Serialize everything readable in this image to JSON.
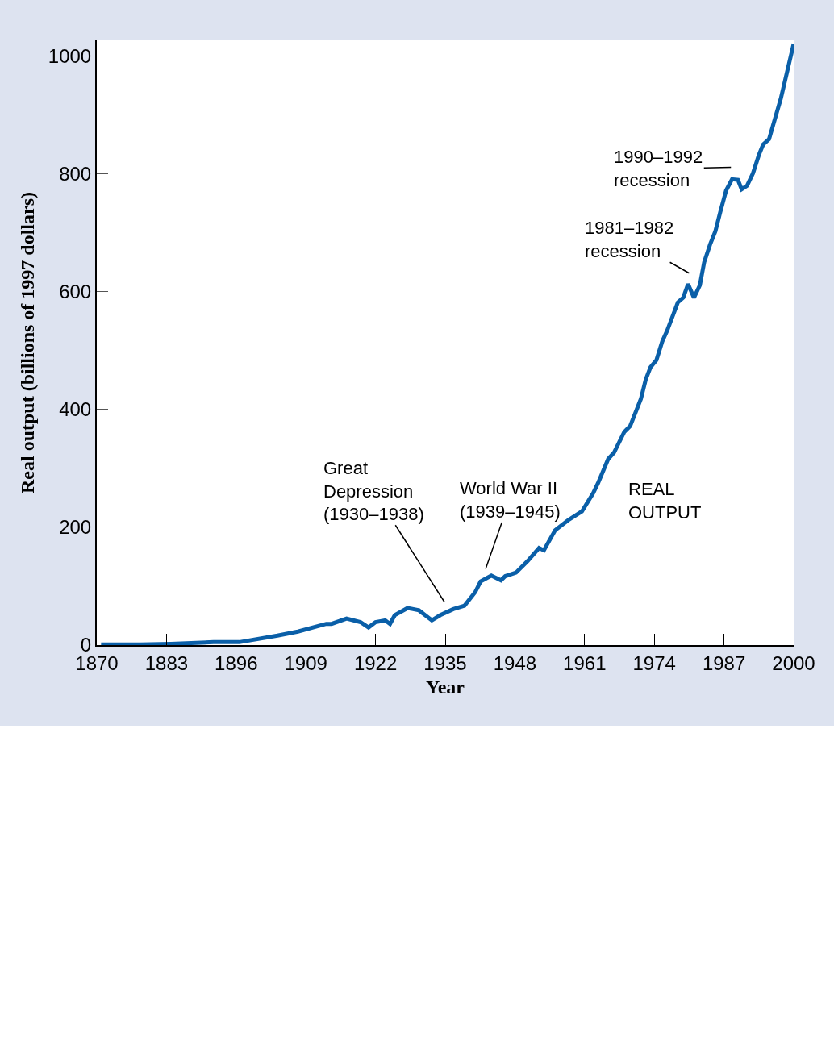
{
  "chart_data": {
    "type": "line",
    "xlabel": "Year",
    "ylabel": "Real output (billions of 1997 dollars)",
    "x": [
      1870.8,
      1878.1,
      1883.8,
      1891.8,
      1896.6,
      1903.7,
      1907.5,
      1912.8,
      1913.8,
      1916.6,
      1919.2,
      1920.7,
      1922.0,
      1923.8,
      1924.7,
      1925.6,
      1928.0,
      1930.1,
      1932.5,
      1934.1,
      1936.5,
      1938.6,
      1940.6,
      1941.6,
      1943.6,
      1945.4,
      1946.2,
      1948.2,
      1950.4,
      1952.5,
      1953.4,
      1955.5,
      1957.9,
      1960.5,
      1962.6,
      1963.5,
      1965.4,
      1966.5,
      1968.4,
      1969.5,
      1971.5,
      1972.4,
      1973.3,
      1974.4,
      1975.5,
      1976.4,
      1978.4,
      1979.4,
      1980.3,
      1981.4,
      1982.5,
      1983.3,
      1984.4,
      1985.4,
      1986.3,
      1987.4,
      1988.5,
      1989.6,
      1990.3,
      1991.3,
      1992.4,
      1993.5,
      1994.3,
      1995.4,
      1997.6,
      2000.0
    ],
    "series": [
      {
        "color": "#0a5fa8",
        "values": [
          1,
          1,
          2,
          5,
          5,
          16,
          23,
          36,
          36,
          45,
          39,
          30,
          39,
          42,
          36,
          51,
          63,
          59,
          42,
          51,
          61,
          67,
          90,
          108,
          118,
          110,
          117,
          123,
          143,
          165,
          161,
          195,
          212,
          227,
          258,
          275,
          316,
          327,
          362,
          372,
          418,
          451,
          472,
          484,
          516,
          534,
          582,
          590,
          613,
          590,
          611,
          650,
          680,
          703,
          735,
          772,
          791,
          790,
          774,
          780,
          801,
          832,
          850,
          859,
          928,
          1021
        ]
      }
    ],
    "xlim": [
      1870,
      2000
    ],
    "xticks": [
      1870,
      1883,
      1896,
      1909,
      1922,
      1935,
      1948,
      1961,
      1974,
      1987,
      2000
    ],
    "ylim": [
      0,
      1027
    ],
    "yticks": [
      0,
      200,
      400,
      600,
      800,
      1000
    ],
    "legend": false,
    "marker": "none",
    "line_style": "solid",
    "annotations": [
      "Great\nDepression\n(1930–1938)",
      "World War II\n(1939–1945)",
      "1981–1982\nrecession",
      "1990–1992\nrecession",
      "REAL\nOUTPUT"
    ]
  }
}
